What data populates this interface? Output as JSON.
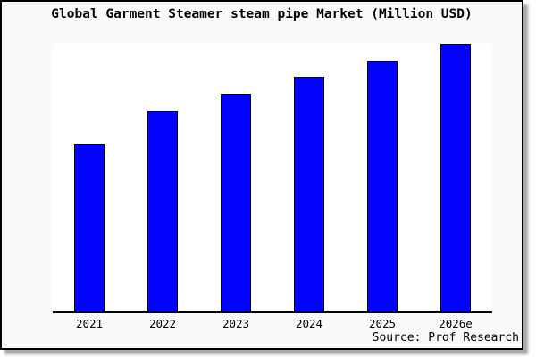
{
  "chart_data": {
    "type": "bar",
    "title": "Global Garment Steamer steam pipe Market (Million USD)",
    "categories": [
      "2021",
      "2022",
      "2023",
      "2024",
      "2025",
      "2026e"
    ],
    "values": [
      62.8,
      75.1,
      81.4,
      87.7,
      93.7,
      100
    ],
    "xlabel": "",
    "ylabel": "",
    "ylim": [
      0,
      100
    ],
    "grid": false,
    "legend": "none",
    "note": "No y-axis ticks shown in image; values are estimated relative to tallest bar (2026e = 100)"
  },
  "footer": {
    "source_label": "Source: Prof Research"
  },
  "colors": {
    "bar_fill": "#0101fe",
    "bar_border": "#000000",
    "card_bg": "#fafafa",
    "plot_bg": "#ffffff",
    "axis": "#000000",
    "shadow": "#a9a9a9",
    "title_text": "#000000"
  }
}
